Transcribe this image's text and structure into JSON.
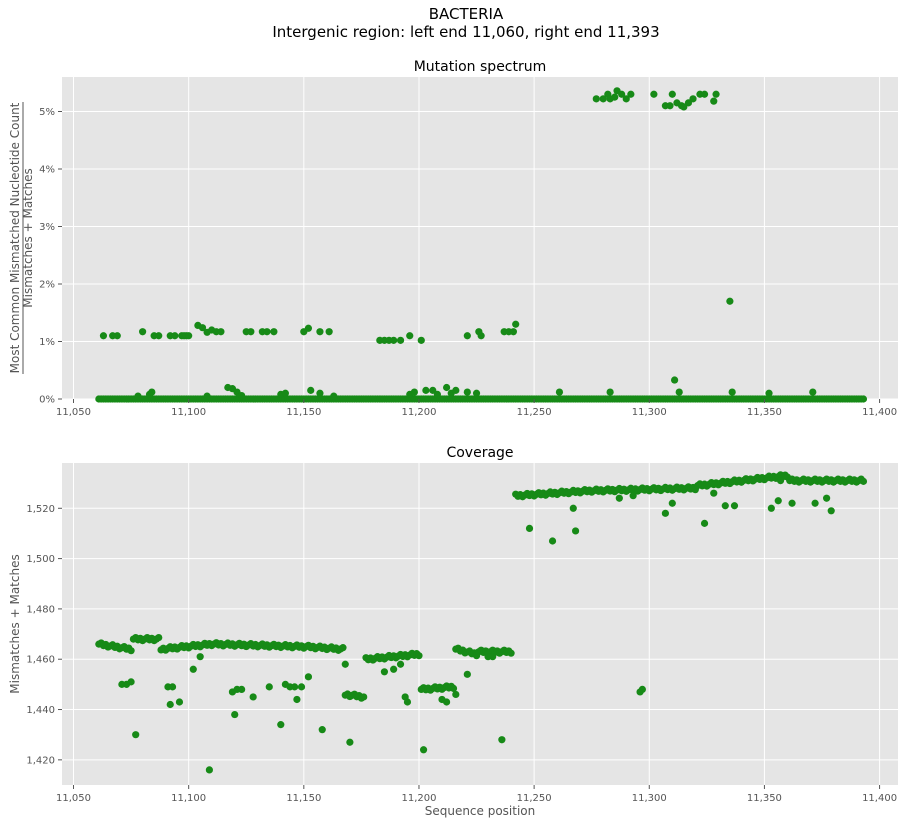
{
  "figure": {
    "suptitle_line1": "BACTERIA",
    "suptitle_line2": "Intergenic region: left end 11,060, right end 11,393",
    "marker_color": "#178a17",
    "plot_bg": "#e5e5e5",
    "grid_color": "#ffffff"
  },
  "chart_data": [
    {
      "type": "scatter",
      "title": "Mutation spectrum",
      "ylabel_numerator": "Most Common Mismatched Nucleotide Count",
      "ylabel_denominator": "Mismatches + Matches",
      "xlabel": "",
      "xlim": [
        11045,
        11408
      ],
      "ylim": [
        0,
        5.6
      ],
      "xticks": [
        11050,
        11100,
        11150,
        11200,
        11250,
        11300,
        11350,
        11400
      ],
      "xtick_labels": [
        "11,050",
        "11,100",
        "11,150",
        "11,200",
        "11,250",
        "11,300",
        "11,350",
        "11,400"
      ],
      "yticks": [
        0,
        1,
        2,
        3,
        4,
        5
      ],
      "ytick_labels": [
        "0%",
        "1%",
        "2%",
        "3%",
        "4%",
        "5%"
      ],
      "grid": true,
      "high_cluster": [
        [
          11277,
          5.22
        ],
        [
          11280,
          5.22
        ],
        [
          11282,
          5.3
        ],
        [
          11283,
          5.22
        ],
        [
          11285,
          5.25
        ],
        [
          11286,
          5.36
        ],
        [
          11288,
          5.3
        ],
        [
          11290,
          5.22
        ],
        [
          11292,
          5.3
        ],
        [
          11302,
          5.3
        ],
        [
          11307,
          5.1
        ],
        [
          11309,
          5.1
        ],
        [
          11310,
          5.3
        ],
        [
          11312,
          5.15
        ],
        [
          11314,
          5.1
        ],
        [
          11315,
          5.08
        ],
        [
          11317,
          5.15
        ],
        [
          11319,
          5.22
        ],
        [
          11322,
          5.3
        ],
        [
          11324,
          5.3
        ],
        [
          11328,
          5.18
        ],
        [
          11329,
          5.3
        ]
      ],
      "mid_cluster": [
        [
          11063,
          1.1
        ],
        [
          11067,
          1.1
        ],
        [
          11069,
          1.1
        ],
        [
          11080,
          1.17
        ],
        [
          11085,
          1.1
        ],
        [
          11087,
          1.1
        ],
        [
          11092,
          1.1
        ],
        [
          11094,
          1.1
        ],
        [
          11097,
          1.1
        ],
        [
          11098,
          1.1
        ],
        [
          11099,
          1.1
        ],
        [
          11100,
          1.1
        ],
        [
          11104,
          1.28
        ],
        [
          11106,
          1.24
        ],
        [
          11108,
          1.16
        ],
        [
          11110,
          1.2
        ],
        [
          11112,
          1.17
        ],
        [
          11114,
          1.17
        ],
        [
          11125,
          1.17
        ],
        [
          11127,
          1.17
        ],
        [
          11132,
          1.17
        ],
        [
          11134,
          1.17
        ],
        [
          11137,
          1.17
        ],
        [
          11150,
          1.17
        ],
        [
          11152,
          1.23
        ],
        [
          11157,
          1.17
        ],
        [
          11161,
          1.17
        ],
        [
          11183,
          1.02
        ],
        [
          11185,
          1.02
        ],
        [
          11187,
          1.02
        ],
        [
          11189,
          1.02
        ],
        [
          11192,
          1.02
        ],
        [
          11196,
          1.1
        ],
        [
          11201,
          1.02
        ],
        [
          11221,
          1.1
        ],
        [
          11226,
          1.17
        ],
        [
          11227,
          1.1
        ],
        [
          11237,
          1.17
        ],
        [
          11239,
          1.17
        ],
        [
          11241,
          1.17
        ],
        [
          11242,
          1.3
        ]
      ],
      "isolated": [
        [
          11335,
          1.7
        ],
        [
          11311,
          0.33
        ],
        [
          11313,
          0.12
        ]
      ],
      "baseline_x_ranges": [
        [
          11061,
          11393
        ]
      ],
      "baseline_bumps": [
        [
          11078,
          0.05
        ],
        [
          11083,
          0.08
        ],
        [
          11084,
          0.12
        ],
        [
          11108,
          0.05
        ],
        [
          11117,
          0.2
        ],
        [
          11119,
          0.18
        ],
        [
          11121,
          0.12
        ],
        [
          11123,
          0.06
        ],
        [
          11140,
          0.08
        ],
        [
          11142,
          0.1
        ],
        [
          11153,
          0.15
        ],
        [
          11157,
          0.1
        ],
        [
          11163,
          0.05
        ],
        [
          11196,
          0.08
        ],
        [
          11198,
          0.12
        ],
        [
          11203,
          0.15
        ],
        [
          11206,
          0.15
        ],
        [
          11208,
          0.08
        ],
        [
          11212,
          0.2
        ],
        [
          11214,
          0.1
        ],
        [
          11216,
          0.15
        ],
        [
          11221,
          0.12
        ],
        [
          11225,
          0.1
        ],
        [
          11261,
          0.12
        ],
        [
          11283,
          0.12
        ],
        [
          11336,
          0.12
        ],
        [
          11352,
          0.1
        ],
        [
          11371,
          0.12
        ]
      ]
    },
    {
      "type": "scatter",
      "title": "Coverage",
      "ylabel": "Mismatches + Matches",
      "xlabel": "Sequence position",
      "xlim": [
        11045,
        11408
      ],
      "ylim": [
        1410,
        1538
      ],
      "xticks": [
        11050,
        11100,
        11150,
        11200,
        11250,
        11300,
        11350,
        11400
      ],
      "xtick_labels": [
        "11,050",
        "11,100",
        "11,150",
        "11,200",
        "11,250",
        "11,300",
        "11,350",
        "11,400"
      ],
      "yticks": [
        1420,
        1440,
        1460,
        1480,
        1500,
        1520
      ],
      "ytick_labels": [
        "1,420",
        "1,440",
        "1,460",
        "1,480",
        "1,500",
        "1,520"
      ],
      "grid": true,
      "segments": [
        [
          11061,
          11075,
          1466,
          1464
        ],
        [
          11076,
          11087,
          1468,
          1468
        ],
        [
          11088,
          11110,
          1464,
          1466
        ],
        [
          11111,
          11150,
          1466,
          1465
        ],
        [
          11151,
          11167,
          1465,
          1464
        ],
        [
          11168,
          11176,
          1446,
          1445
        ],
        [
          11177,
          11200,
          1460,
          1462
        ],
        [
          11201,
          11215,
          1448,
          1449
        ],
        [
          11216,
          11225,
          1464,
          1462
        ],
        [
          11226,
          11240,
          1463,
          1463
        ],
        [
          11242,
          11275,
          1525,
          1527
        ],
        [
          11276,
          11320,
          1527,
          1528
        ],
        [
          11321,
          11360,
          1529,
          1533
        ],
        [
          11361,
          11393,
          1531,
          1531
        ]
      ],
      "outliers": [
        [
          11071,
          1450
        ],
        [
          11073,
          1450
        ],
        [
          11075,
          1451
        ],
        [
          11077,
          1430
        ],
        [
          11091,
          1449
        ],
        [
          11092,
          1442
        ],
        [
          11093,
          1449
        ],
        [
          11096,
          1443
        ],
        [
          11102,
          1456
        ],
        [
          11105,
          1461
        ],
        [
          11109,
          1416
        ],
        [
          11119,
          1447
        ],
        [
          11120,
          1438
        ],
        [
          11121,
          1448
        ],
        [
          11123,
          1448
        ],
        [
          11128,
          1445
        ],
        [
          11135,
          1449
        ],
        [
          11140,
          1434
        ],
        [
          11142,
          1450
        ],
        [
          11144,
          1449
        ],
        [
          11146,
          1449
        ],
        [
          11147,
          1444
        ],
        [
          11149,
          1449
        ],
        [
          11152,
          1453
        ],
        [
          11158,
          1432
        ],
        [
          11168,
          1458
        ],
        [
          11170,
          1427
        ],
        [
          11185,
          1455
        ],
        [
          11189,
          1456
        ],
        [
          11192,
          1458
        ],
        [
          11194,
          1445
        ],
        [
          11195,
          1443
        ],
        [
          11202,
          1424
        ],
        [
          11210,
          1444
        ],
        [
          11212,
          1443
        ],
        [
          11216,
          1446
        ],
        [
          11221,
          1454
        ],
        [
          11230,
          1461
        ],
        [
          11232,
          1461
        ],
        [
          11236,
          1428
        ],
        [
          11248,
          1512
        ],
        [
          11258,
          1507
        ],
        [
          11267,
          1520
        ],
        [
          11268,
          1511
        ],
        [
          11287,
          1524
        ],
        [
          11293,
          1525
        ],
        [
          11296,
          1447
        ],
        [
          11297,
          1448
        ],
        [
          11307,
          1518
        ],
        [
          11310,
          1522
        ],
        [
          11324,
          1514
        ],
        [
          11328,
          1526
        ],
        [
          11333,
          1521
        ],
        [
          11337,
          1521
        ],
        [
          11353,
          1520
        ],
        [
          11356,
          1523
        ],
        [
          11362,
          1522
        ],
        [
          11372,
          1522
        ],
        [
          11377,
          1524
        ],
        [
          11379,
          1519
        ],
        [
          11357,
          1531
        ]
      ]
    }
  ]
}
